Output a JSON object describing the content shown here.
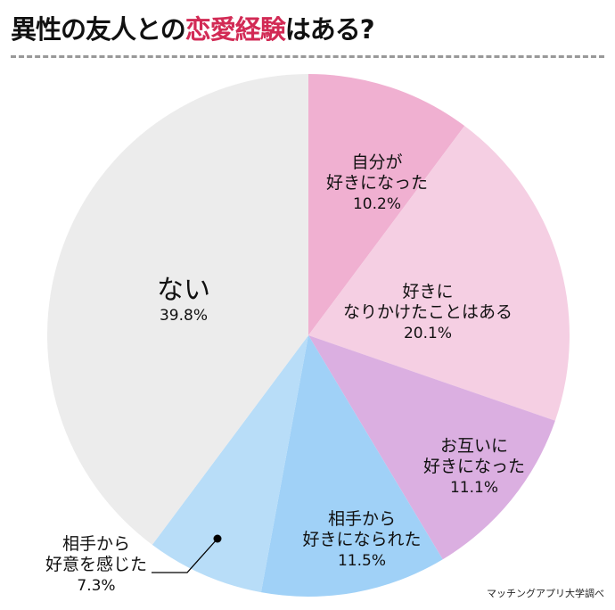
{
  "title": {
    "prefix": "異性の友人との",
    "highlight": "恋愛経験",
    "suffix": "はある?"
  },
  "source": "マッチングアプリ大学調べ",
  "chart_data": {
    "type": "pie",
    "start": "top",
    "direction": "clockwise",
    "slices": [
      {
        "label": [
          "自分が",
          "好きになった"
        ],
        "value": 10.2,
        "display": "10.2%",
        "color": "#f0b0d1"
      },
      {
        "label": [
          "好きに",
          "なりかけたことはある"
        ],
        "value": 20.1,
        "display": "20.1%",
        "color": "#f5cfe3"
      },
      {
        "label": [
          "お互いに",
          "好きになった"
        ],
        "value": 11.1,
        "display": "11.1%",
        "color": "#dbafe1"
      },
      {
        "label": [
          "相手から",
          "好きになられた"
        ],
        "value": 11.5,
        "display": "11.5%",
        "color": "#a0d1f7"
      },
      {
        "label": [
          "相手から",
          "好意を感じた"
        ],
        "value": 7.3,
        "display": "7.3%",
        "color": "#b8ddf8",
        "callout": true
      },
      {
        "label": [
          "ない"
        ],
        "value": 39.8,
        "display": "39.8%",
        "color": "#ececec"
      }
    ]
  }
}
